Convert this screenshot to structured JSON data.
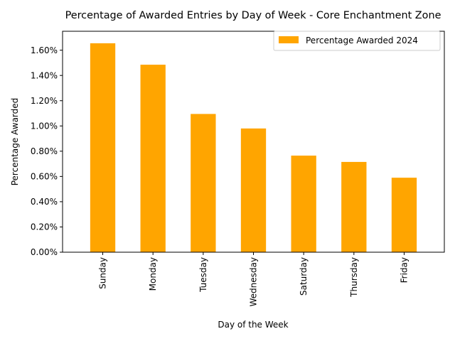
{
  "chart_data": {
    "type": "bar",
    "title": "Percentage of Awarded Entries by Day of Week - Core Enchantment Zone",
    "xlabel": "Day of the Week",
    "ylabel": "Percentage Awarded",
    "categories": [
      "Sunday",
      "Monday",
      "Tuesday",
      "Wednesday",
      "Saturday",
      "Thursday",
      "Friday"
    ],
    "series": [
      {
        "name": "Percentage Awarded 2024",
        "color": "#ffa500",
        "values": [
          1.655,
          1.485,
          1.095,
          0.98,
          0.765,
          0.715,
          0.59
        ]
      }
    ],
    "ylim": [
      0,
      1.75
    ],
    "yticks": [
      0.0,
      0.2,
      0.4,
      0.6,
      0.8,
      1.0,
      1.2,
      1.4,
      1.6
    ],
    "ytick_labels": [
      "0.00%",
      "0.20%",
      "0.40%",
      "0.60%",
      "0.80%",
      "1.00%",
      "1.20%",
      "1.40%",
      "1.60%"
    ],
    "y_unit": "%",
    "grid": false,
    "legend_position": "top-right"
  }
}
